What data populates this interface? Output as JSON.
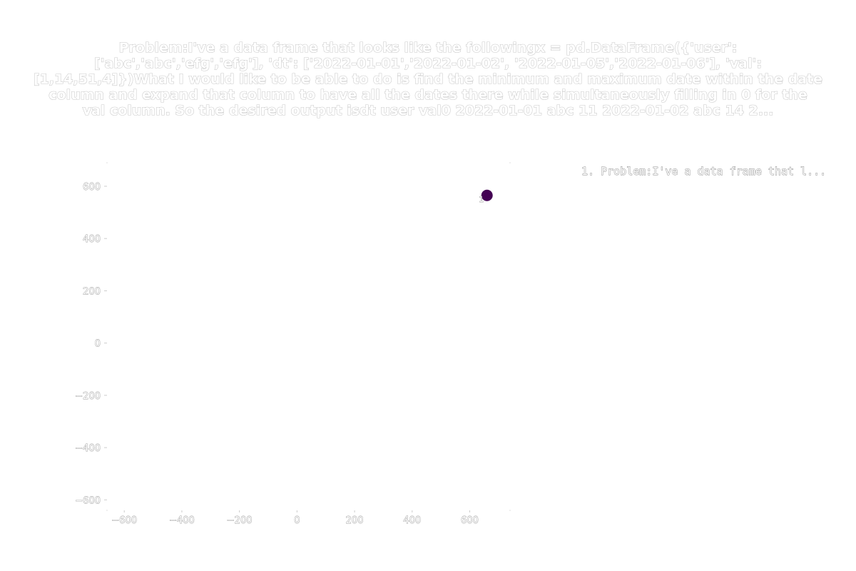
{
  "chart_data": {
    "type": "scatter",
    "title_lines": [
      "Problem:I've a data frame that looks like the followingx = pd.DataFrame({'user':",
      "['abc','abc','efg','efg'], 'dt': ['2022-01-01','2022-01-02', '2022-01-05','2022-01-06'], 'val':",
      "[1,14,51,4]})What I would  like to be able to do is find the minimum and maximum date within the date",
      "column and expand that column to have all the dates there while simultaneously filling in 0 for the",
      "val column. So the desired output isdt user val0  2022-01-01  abc    11  2022-01-02  abc   14 2..."
    ],
    "xlabel": "",
    "ylabel": "",
    "xlim": [
      -660,
      740
    ],
    "ylim": [
      -640,
      690
    ],
    "x_ticks": [
      -600,
      -400,
      -200,
      0,
      200,
      400,
      600
    ],
    "y_ticks": [
      -600,
      -400,
      -200,
      0,
      200,
      400,
      600
    ],
    "x_tick_labels": [
      "−600",
      "−400",
      "−200",
      "0",
      "200",
      "400",
      "600"
    ],
    "y_tick_labels": [
      "−600",
      "−400",
      "−200",
      "0",
      "200",
      "400",
      "600"
    ],
    "grid": false,
    "legend_position": "top-right",
    "series": [
      {
        "name": "1. Problem:I've a data frame that l...",
        "color": "#440154",
        "points": [
          {
            "x": 660,
            "y": 565,
            "label": "1"
          }
        ]
      }
    ]
  }
}
